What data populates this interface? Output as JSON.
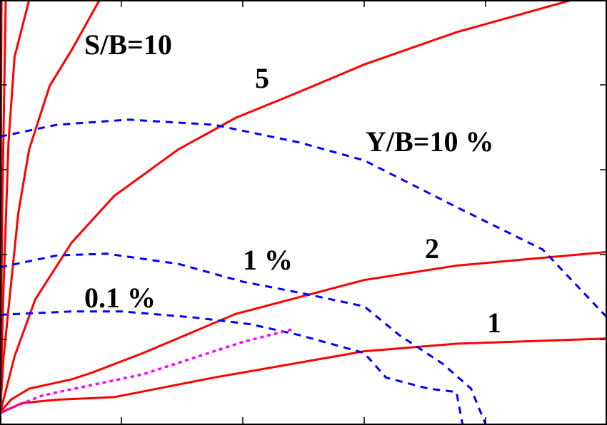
{
  "chart_data": {
    "type": "line",
    "title": "",
    "xlabel": "",
    "ylabel": "",
    "xlim": [
      0,
      5
    ],
    "ylim": [
      0,
      5
    ],
    "xticks": [
      1,
      2,
      3,
      4
    ],
    "yticks": [
      1,
      2,
      3,
      4
    ],
    "tick_labels_shown": false,
    "grid": false,
    "colors": {
      "sb": "#ff0000",
      "yb": "#0000ff",
      "extra": "#ff00ff",
      "frame": "#000000"
    },
    "sb_curves": [
      {
        "label": "1",
        "x": [
          0,
          0.18,
          0.47,
          0.94,
          1.76,
          3.0,
          3.76,
          5.0
        ],
        "y": [
          0.13,
          0.25,
          0.29,
          0.32,
          0.55,
          0.86,
          0.95,
          1.01
        ]
      },
      {
        "label": "2",
        "x": [
          0,
          0.09,
          0.24,
          0.59,
          0.76,
          1.18,
          1.94,
          3.0,
          3.76,
          5.0
        ],
        "y": [
          0.14,
          0.29,
          0.42,
          0.53,
          0.61,
          0.84,
          1.3,
          1.7,
          1.87,
          2.03
        ]
      },
      {
        "label": "5",
        "x": [
          0,
          0.12,
          0.29,
          0.59,
          0.94,
          1.47,
          1.94,
          2.47,
          3.0,
          3.76,
          4.71
        ],
        "y": [
          0.13,
          0.8,
          1.47,
          2.14,
          2.69,
          3.24,
          3.61,
          3.92,
          4.24,
          4.62,
          5.0
        ]
      },
      {
        "label": "S/B=10",
        "x": [
          0,
          0.03,
          0.09,
          0.15,
          0.24,
          0.41,
          0.59,
          0.82
        ],
        "y": [
          0.13,
          0.8,
          1.64,
          2.48,
          3.24,
          3.99,
          4.41,
          5.0
        ]
      },
      {
        "label": "",
        "x": [
          0,
          0.03,
          0.07,
          0.12,
          0.24
        ],
        "y": [
          0.13,
          1.64,
          3.32,
          4.33,
          5.0
        ]
      },
      {
        "label": "",
        "x": [
          0,
          0.018,
          0.047
        ],
        "y": [
          0.13,
          2.48,
          5.0
        ]
      },
      {
        "label": "",
        "x": [
          0,
          0.012
        ],
        "y": [
          0.13,
          5.0
        ]
      }
    ],
    "yb_curves": [
      {
        "label": "Y/B=10 %",
        "x": [
          0,
          0.47,
          1.06,
          1.76,
          2.47,
          3.0,
          3.76,
          4.47,
          5.0
        ],
        "y": [
          3.39,
          3.53,
          3.59,
          3.53,
          3.32,
          3.11,
          2.56,
          2.06,
          1.26
        ]
      },
      {
        "label": "1 %",
        "x": [
          0,
          0.47,
          0.88,
          1.47,
          2.0,
          2.47,
          3.0,
          3.29,
          3.65,
          3.88,
          4.0
        ],
        "y": [
          1.85,
          1.99,
          2.01,
          1.89,
          1.68,
          1.55,
          1.39,
          1.05,
          0.71,
          0.42,
          0
        ]
      },
      {
        "label": "0.1 %",
        "x": [
          0,
          0.59,
          1.0,
          1.59,
          2.06,
          2.47,
          3.0,
          3.18,
          3.53,
          3.76,
          3.81
        ],
        "y": [
          1.29,
          1.33,
          1.33,
          1.26,
          1.18,
          1.05,
          0.84,
          0.55,
          0.42,
          0.38,
          0
        ]
      }
    ],
    "extra_curve": {
      "x": [
        0,
        0.35,
        1.18,
        2.0,
        2.41
      ],
      "y": [
        0.14,
        0.34,
        0.59,
        0.97,
        1.12
      ]
    },
    "annotations": [
      "S/B=10",
      "5",
      "Y/B=10 %",
      "2",
      "1 %",
      "0.1 %",
      "1"
    ]
  }
}
